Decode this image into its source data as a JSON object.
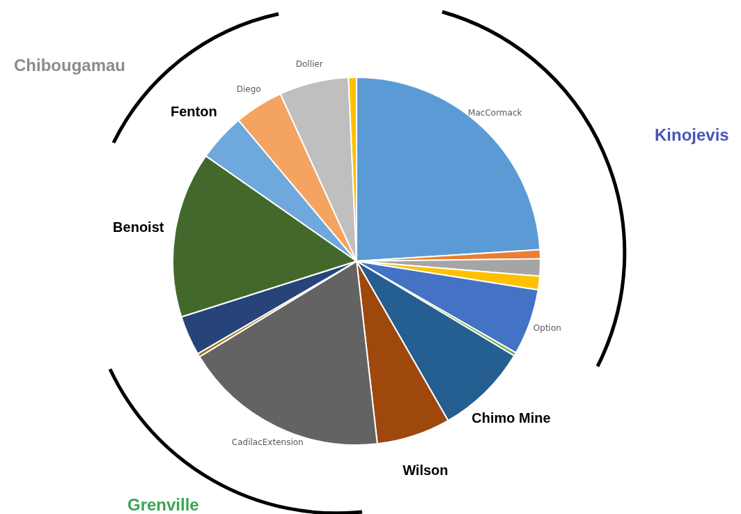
{
  "chart_data": {
    "type": "pie",
    "legend": false,
    "categories": [
      "MacCormack",
      null,
      null,
      null,
      "Option",
      null,
      "Chimo Mine",
      "Wilson",
      "CadilacExtension",
      null,
      null,
      "Benoist",
      "Fenton",
      "Diego",
      "Dollier",
      null
    ],
    "values": [
      24.0,
      0.8,
      1.5,
      1.2,
      5.8,
      0.3,
      8.1,
      6.5,
      18.1,
      0.3,
      3.5,
      14.6,
      4.2,
      4.3,
      6.1,
      0.7
    ],
    "colors": [
      "#5b9bd5",
      "#ed7d31",
      "#a5a5a5",
      "#ffc000",
      "#4472c4",
      "#70ad47",
      "#255e91",
      "#9e480e",
      "#636363",
      "#997300",
      "#264478",
      "#43682b",
      "#6fa8dc",
      "#f4a460",
      "#bfbfbf",
      "#ffc000"
    ],
    "annotations": [
      "Chibougamau",
      "Kinojevis",
      "Grenville"
    ]
  }
}
